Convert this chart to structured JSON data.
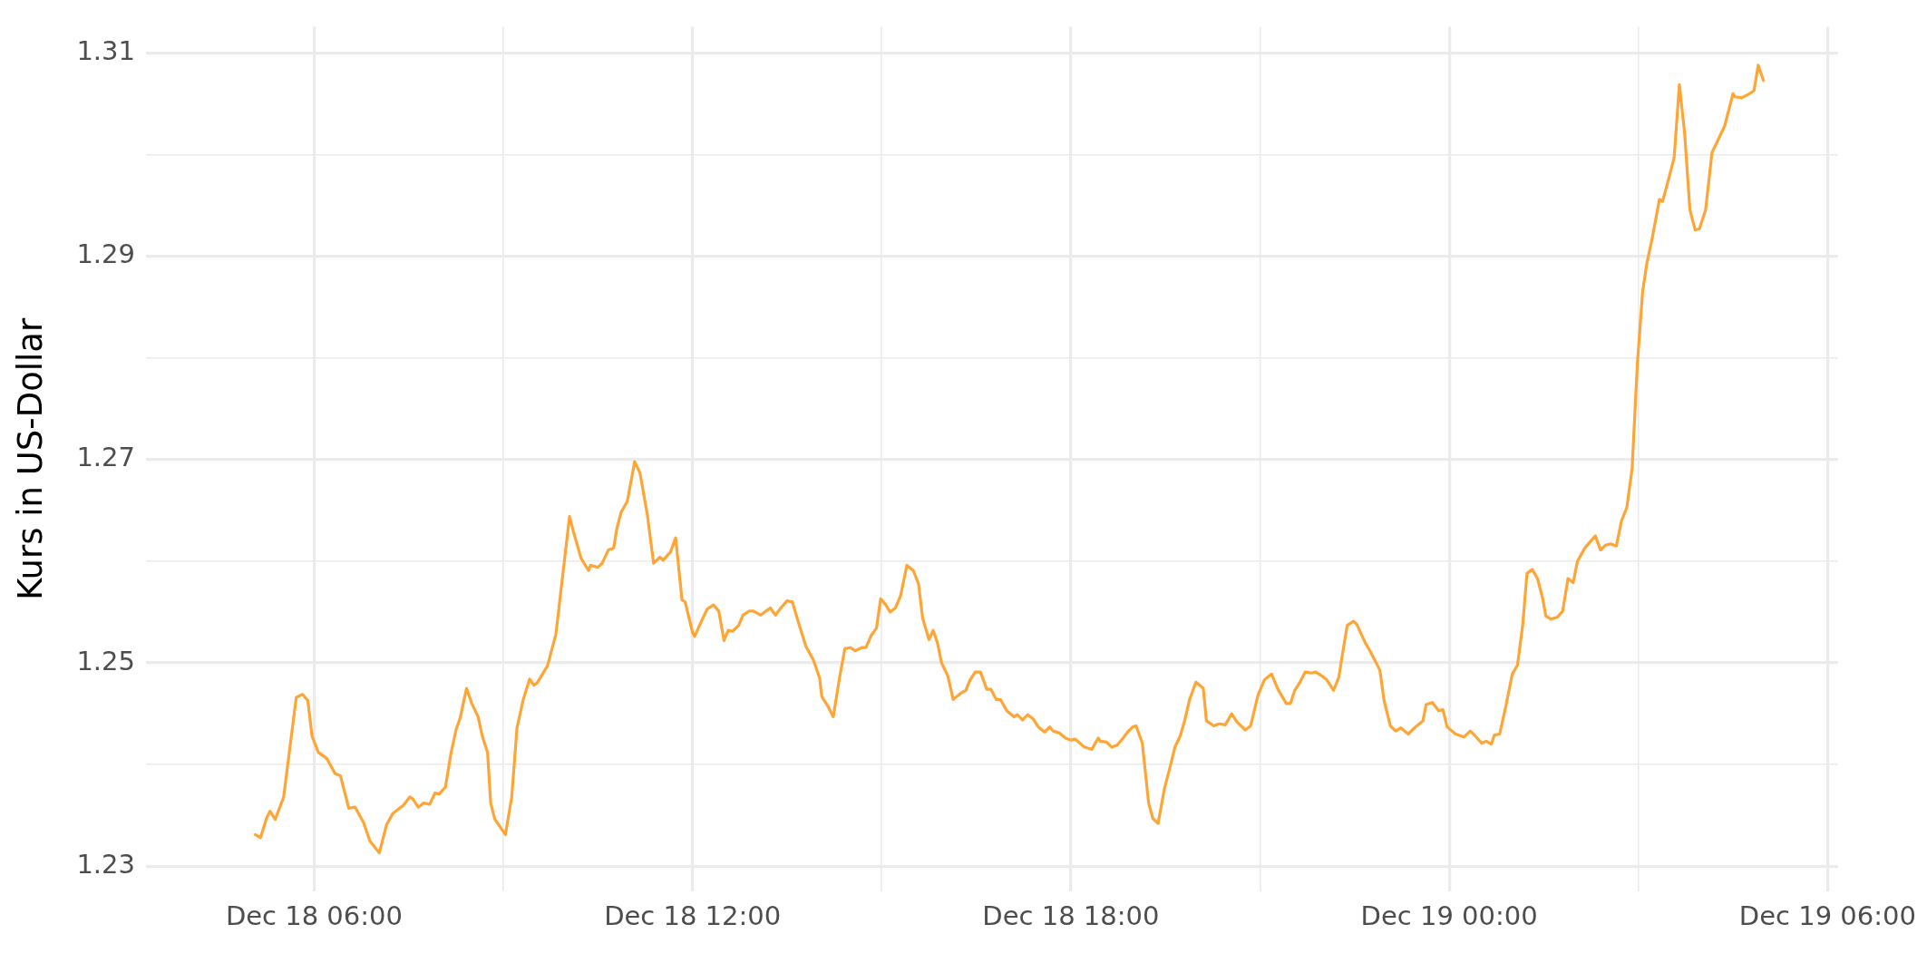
{
  "chart_data": {
    "type": "line",
    "ylabel": "Kurs in US-Dollar",
    "color": "#ffa535",
    "grid": true,
    "x": [
      "--12-18T05:04",
      "--12-18T05:09",
      "--12-18T05:15",
      "--12-18T05:18",
      "--12-18T05:23",
      "--12-18T05:31",
      "--12-18T05:37",
      "--12-18T05:43",
      "--12-18T05:49",
      "--12-18T05:54",
      "--12-18T05:58",
      "--12-18T06:04",
      "--12-18T06:12",
      "--12-18T06:20",
      "--12-18T06:25",
      "--12-18T06:33",
      "--12-18T06:39",
      "--12-18T06:47",
      "--12-18T06:53",
      "--12-18T07:02",
      "--12-18T07:09",
      "--12-18T07:15",
      "--12-18T07:25",
      "--12-18T07:31",
      "--12-18T07:34",
      "--12-18T07:39",
      "--12-18T07:44",
      "--12-18T07:50",
      "--12-18T07:55",
      "--12-18T07:59",
      "--12-18T08:05",
      "--12-18T08:10",
      "--12-18T08:15",
      "--12-18T08:19",
      "--12-18T08:25",
      "--12-18T08:30",
      "--12-18T08:36",
      "--12-18T08:40",
      "--12-18T08:45",
      "--12-18T08:48",
      "--12-18T08:52",
      "--12-18T09:02",
      "--12-18T09:08",
      "--12-18T09:13",
      "--12-18T09:19",
      "--12-18T09:25",
      "--12-18T09:29",
      "--12-18T09:32",
      "--12-18T09:42",
      "--12-18T09:50",
      "--12-18T10:03",
      "--12-18T10:07",
      "--12-18T10:14",
      "--12-18T10:21",
      "--12-18T10:23",
      "--12-18T10:30",
      "--12-18T10:34",
      "--12-18T10:40",
      "--12-18T10:45",
      "--12-18T10:48",
      "--12-18T10:52",
      "--12-18T10:58",
      "--12-18T11:05",
      "--12-18T11:10",
      "--12-18T11:17",
      "--12-18T11:23",
      "--12-18T11:29",
      "--12-18T11:32",
      "--12-18T11:39",
      "--12-18T11:44",
      "--12-18T11:50",
      "--12-18T11:53",
      "--12-18T12:00",
      "--12-18T12:02",
      "--12-18T12:09",
      "--12-18T12:14",
      "--12-18T12:20",
      "--12-18T12:25",
      "--12-18T12:30",
      "--12-18T12:34",
      "--12-18T12:38",
      "--12-18T12:44",
      "--12-18T12:48",
      "--12-18T12:54",
      "--12-18T12:58",
      "--12-18T13:05",
      "--12-18T13:10",
      "--12-18T13:14",
      "--12-18T13:19",
      "--12-18T13:24",
      "--12-18T13:30",
      "--12-18T13:35",
      "--12-18T13:41",
      "--12-18T13:48",
      "--12-18T13:55",
      "--12-18T14:01",
      "--12-18T14:03",
      "--12-18T14:09",
      "--12-18T14:14",
      "--12-18T14:20",
      "--12-18T14:25",
      "--12-18T14:30",
      "--12-18T14:35",
      "--12-18T14:41",
      "--12-18T14:45",
      "--12-18T14:50",
      "--12-18T14:55",
      "--12-18T14:59",
      "--12-18T15:04",
      "--12-18T15:08",
      "--12-18T15:13",
      "--12-18T15:18",
      "--12-18T15:24",
      "--12-18T15:30",
      "--12-18T15:35",
      "--12-18T15:39",
      "--12-18T15:45",
      "--12-18T15:49",
      "--12-18T15:53",
      "--12-18T15:57",
      "--12-18T16:03",
      "--12-18T16:08",
      "--12-18T16:15",
      "--12-18T16:20",
      "--12-18T16:24",
      "--12-18T16:29",
      "--12-18T16:34",
      "--12-18T16:40",
      "--12-18T16:44",
      "--12-18T16:49",
      "--12-18T16:53",
      "--12-18T16:59",
      "--12-18T17:06",
      "--12-18T17:09",
      "--12-18T17:14",
      "--12-18T17:19",
      "--12-18T17:24",
      "--12-18T17:29",
      "--12-18T17:35",
      "--12-18T17:40",
      "--12-18T17:43",
      "--12-18T17:49",
      "--12-18T17:55",
      "--12-18T18:00",
      "--12-18T18:04",
      "--12-18T18:13",
      "--12-18T18:20",
      "--12-18T18:26",
      "--12-18T18:28",
      "--12-18T18:34",
      "--12-18T18:39",
      "--12-18T18:44",
      "--12-18T18:49",
      "--12-18T18:54",
      "--12-18T18:59",
      "--12-18T19:02",
      "--12-18T19:08",
      "--12-18T19:14",
      "--12-18T19:18",
      "--12-18T19:23",
      "--12-18T19:29",
      "--12-18T19:34",
      "--12-18T19:39",
      "--12-18T19:44",
      "--12-18T19:48",
      "--12-18T19:53",
      "--12-18T19:59",
      "--12-18T20:06",
      "--12-18T20:09",
      "--12-18T20:16",
      "--12-18T20:21",
      "--12-18T20:27",
      "--12-18T20:33",
      "--12-18T20:38",
      "--12-18T20:46",
      "--12-18T20:51",
      "--12-18T20:58",
      "--12-18T21:04",
      "--12-18T21:11",
      "--12-18T21:17",
      "--12-18T21:25",
      "--12-18T21:29",
      "--12-18T21:33",
      "--12-18T21:38",
      "--12-18T21:43",
      "--12-18T21:49",
      "--12-18T21:53",
      "--12-18T21:59",
      "--12-18T22:03",
      "--12-18T22:10",
      "--12-18T22:15",
      "--12-18T22:18",
      "--12-18T22:23",
      "--12-18T22:29",
      "--12-18T22:32",
      "--12-18T22:40",
      "--12-18T22:44",
      "--12-18T22:54",
      "--12-18T22:58",
      "--12-18T23:04",
      "--12-18T23:09",
      "--12-18T23:14",
      "--12-18T23:21",
      "--12-18T23:28",
      "--12-18T23:35",
      "--12-18T23:38",
      "--12-18T23:44",
      "--12-18T23:50",
      "--12-18T23:54",
      "--12-18T23:58",
      "--12-19T00:06",
      "--12-19T00:14",
      "--12-19T00:20",
      "--12-19T00:23",
      "--12-19T00:31",
      "--12-19T00:35",
      "--12-19T00:40",
      "--12-19T00:43",
      "--12-19T00:48",
      "--12-19T00:54",
      "--12-19T01:00",
      "--12-19T01:05",
      "--12-19T01:10",
      "--12-19T01:14",
      "--12-19T01:19",
      "--12-19T01:24",
      "--12-19T01:29",
      "--12-19T01:32",
      "--12-19T01:37",
      "--12-19T01:43",
      "--12-19T01:48",
      "--12-19T01:53",
      "--12-19T01:58",
      "--12-19T02:02",
      "--12-19T02:09",
      "--12-19T02:14",
      "--12-19T02:19",
      "--12-19T02:24",
      "--12-19T02:29",
      "--12-19T02:34",
      "--12-19T02:39",
      "--12-19T02:44",
      "--12-19T02:49",
      "--12-19T02:54",
      "--12-19T02:59",
      "--12-19T03:04",
      "--12-19T03:08",
      "--12-19T03:13",
      "--12-19T03:20",
      "--12-19T03:23",
      "--12-19T03:29",
      "--12-19T03:34",
      "--12-19T03:39",
      "--12-19T03:44",
      "--12-19T03:49",
      "--12-19T03:54",
      "--12-19T03:58",
      "--12-19T04:04",
      "--12-19T04:10",
      "--12-19T04:16",
      "--12-19T04:22",
      "--12-19T04:30",
      "--12-19T04:32",
      "--12-19T04:38",
      "--12-19T04:44",
      "--12-19T04:50",
      "--12-19T04:54",
      "--12-19T04:59"
    ],
    "values": [
      1.2331,
      1.2328,
      1.2348,
      1.2354,
      1.2346,
      1.2368,
      1.2417,
      1.2466,
      1.2469,
      1.2463,
      1.2428,
      1.2412,
      1.2406,
      1.2391,
      1.2389,
      1.2357,
      1.2358,
      1.2343,
      1.2325,
      1.2313,
      1.2341,
      1.2352,
      1.236,
      1.2368,
      1.2366,
      1.2358,
      1.2362,
      1.2361,
      1.2372,
      1.2371,
      1.2378,
      1.241,
      1.2434,
      1.2446,
      1.2475,
      1.246,
      1.2447,
      1.2428,
      1.2412,
      1.2362,
      1.2346,
      1.2331,
      1.2368,
      1.2436,
      1.2464,
      1.2484,
      1.2478,
      1.248,
      1.2497,
      1.2528,
      1.2644,
      1.2628,
      1.2603,
      1.2591,
      1.2596,
      1.2594,
      1.2598,
      1.2611,
      1.2613,
      1.2632,
      1.2648,
      1.2659,
      1.2698,
      1.2687,
      1.2646,
      1.2598,
      1.2604,
      1.2601,
      1.2609,
      1.2623,
      1.2562,
      1.256,
      1.253,
      1.2526,
      1.2542,
      1.2553,
      1.2557,
      1.2551,
      1.2522,
      1.2532,
      1.2531,
      1.2537,
      1.2547,
      1.2551,
      1.2551,
      1.2547,
      1.2551,
      1.2554,
      1.2547,
      1.2554,
      1.2561,
      1.256,
      1.2539,
      1.2516,
      1.2503,
      1.2485,
      1.2467,
      1.2457,
      1.2447,
      1.2486,
      1.2514,
      1.2515,
      1.2512,
      1.2515,
      1.2515,
      1.2527,
      1.2534,
      1.2563,
      1.2557,
      1.255,
      1.2554,
      1.2566,
      1.2596,
      1.2591,
      1.2578,
      1.2544,
      1.2523,
      1.2532,
      1.252,
      1.25,
      1.2487,
      1.2464,
      1.247,
      1.2473,
      1.2483,
      1.2491,
      1.2491,
      1.2474,
      1.2474,
      1.2464,
      1.2464,
      1.2453,
      1.2447,
      1.2449,
      1.2444,
      1.2449,
      1.2445,
      1.2437,
      1.2432,
      1.2437,
      1.2433,
      1.2431,
      1.2426,
      1.2424,
      1.2425,
      1.2417,
      1.2415,
      1.2426,
      1.2423,
      1.2422,
      1.2417,
      1.2419,
      1.2425,
      1.2432,
      1.2437,
      1.2438,
      1.2421,
      1.2362,
      1.2347,
      1.2342,
      1.2376,
      1.2396,
      1.2417,
      1.2428,
      1.2442,
      1.2464,
      1.2481,
      1.2475,
      1.2443,
      1.2438,
      1.244,
      1.2439,
      1.245,
      1.2442,
      1.2434,
      1.2438,
      1.2468,
      1.2483,
      1.2489,
      1.2474,
      1.246,
      1.246,
      1.2473,
      1.2481,
      1.2491,
      1.249,
      1.2491,
      1.2487,
      1.2484,
      1.2473,
      1.2486,
      1.2506,
      1.2537,
      1.2541,
      1.2538,
      1.252,
      1.2513,
      1.2493,
      1.2463,
      1.2438,
      1.2433,
      1.2436,
      1.243,
      1.2437,
      1.2443,
      1.2459,
      1.2461,
      1.2453,
      1.2454,
      1.2437,
      1.243,
      1.2427,
      1.2433,
      1.243,
      1.2421,
      1.2423,
      1.242,
      1.2429,
      1.243,
      1.2458,
      1.2489,
      1.2498,
      1.2538,
      1.2588,
      1.2592,
      1.2583,
      1.2563,
      1.2546,
      1.2543,
      1.2545,
      1.2551,
      1.2583,
      1.2579,
      1.26,
      1.2613,
      1.2619,
      1.2625,
      1.2611,
      1.2616,
      1.2617,
      1.2615,
      1.264,
      1.2653,
      1.2691,
      1.2794,
      1.2865,
      1.2893,
      1.2917,
      1.2956,
      1.2954,
      1.2977,
      1.2997,
      1.3069,
      1.3021,
      1.2946,
      1.2926,
      1.2927,
      1.2946,
      1.3002,
      1.3015,
      1.3028,
      1.306,
      1.3057,
      1.3056,
      1.3059,
      1.3063,
      1.3088,
      1.3073
    ],
    "xlim": [
      "--12-18T03:20",
      "--12-19T06:10"
    ],
    "xticks": [
      {
        "value": "--12-18T06:00",
        "label": "Dec 18 06:00"
      },
      {
        "value": "--12-18T09:00",
        "label": null
      },
      {
        "value": "--12-18T12:00",
        "label": "Dec 18 12:00"
      },
      {
        "value": "--12-18T15:00",
        "label": null
      },
      {
        "value": "--12-18T18:00",
        "label": "Dec 18 18:00"
      },
      {
        "value": "--12-18T21:00",
        "label": null
      },
      {
        "value": "--12-19T00:00",
        "label": "Dec 19 00:00"
      },
      {
        "value": "--12-19T03:00",
        "label": null
      },
      {
        "value": "--12-19T06:00",
        "label": "Dec 19 06:00"
      }
    ],
    "ylim": [
      1.2275,
      1.3126
    ],
    "yticks": [
      1.23,
      {
        "value": 1.24,
        "label": null
      },
      1.25,
      {
        "value": 1.26,
        "label": null
      },
      1.27,
      {
        "value": 1.28,
        "label": null
      },
      1.29,
      {
        "value": 1.3,
        "label": null
      },
      1.31
    ]
  }
}
